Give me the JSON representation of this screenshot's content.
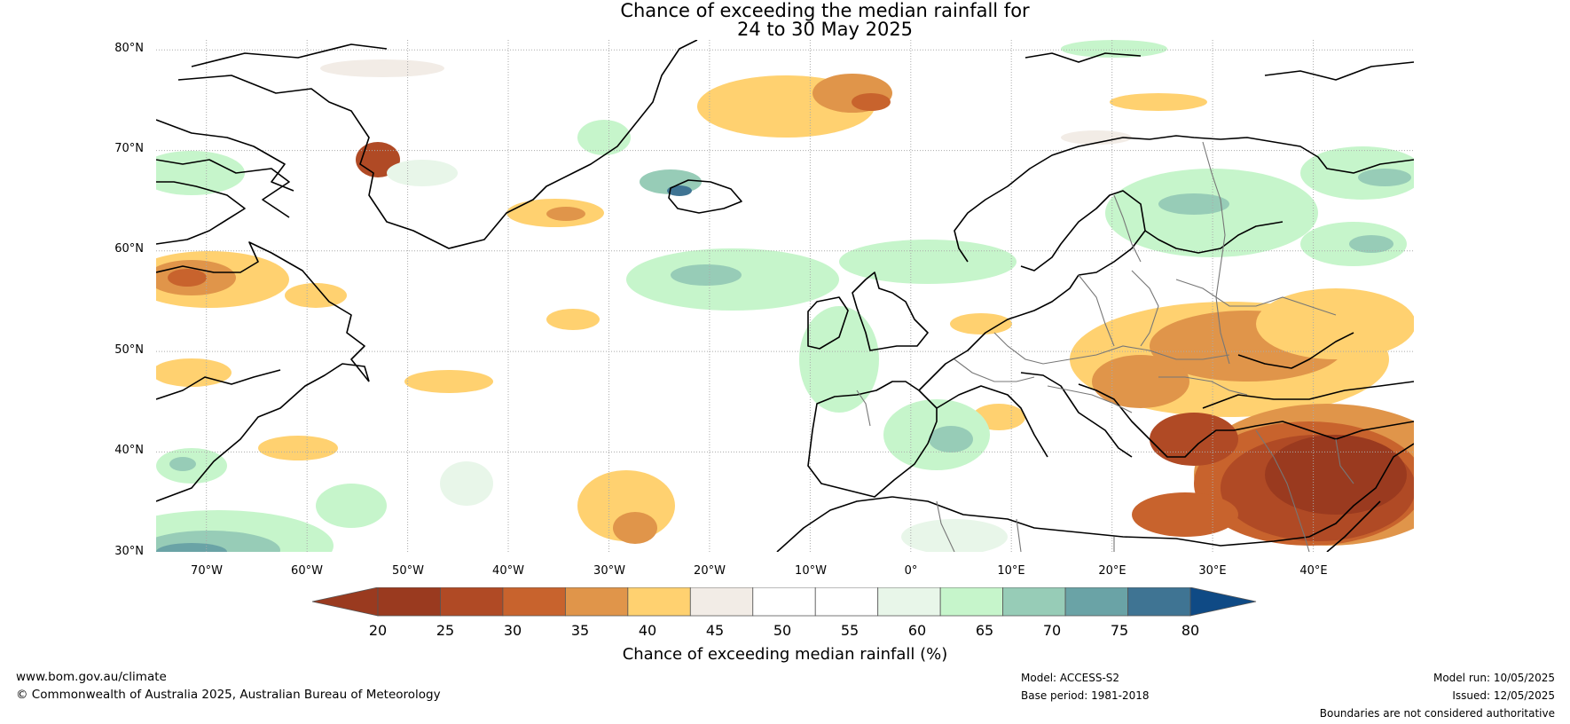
{
  "title": {
    "line1": "Chance of exceeding the median rainfall for",
    "line2": "24 to 30 May 2025"
  },
  "map": {
    "lat_labels": [
      "80°N",
      "70°N",
      "60°N",
      "50°N",
      "40°N",
      "30°N"
    ],
    "lon_labels": [
      "70°W",
      "60°W",
      "50°W",
      "40°W",
      "30°W",
      "20°W",
      "10°W",
      "0°",
      "10°E",
      "20°E",
      "30°E",
      "40°E"
    ],
    "extent": {
      "lon_min": -75,
      "lon_max": 50,
      "lat_min": 30,
      "lat_max": 81
    }
  },
  "colorbar": {
    "ticks": [
      "20",
      "25",
      "30",
      "35",
      "40",
      "45",
      "50",
      "55",
      "60",
      "65",
      "70",
      "75",
      "80"
    ],
    "colors": [
      "#9a3a1f",
      "#b04a25",
      "#c8632d",
      "#e0954a",
      "#ffd170",
      "#f2ece6",
      "#ffffff",
      "#ffffff",
      "#e8f6e9",
      "#c6f5cb",
      "#97ccb7",
      "#6aa3a6",
      "#3f7493"
    ],
    "low_color": "#9a3a1f",
    "high_color": "#0f4a85",
    "label": "Chance of exceeding median rainfall (%)"
  },
  "footer": {
    "url": "www.bom.gov.au/climate",
    "copyright": "© Commonwealth of Australia 2025, Australian Bureau of Meteorology",
    "model": "Model: ACCESS-S2",
    "base_period": "Base period: 1981-2018",
    "model_run": "Model run: 10/05/2025",
    "issued": "Issued: 12/05/2025",
    "disclaimer": "Boundaries are not considered authoritative"
  }
}
